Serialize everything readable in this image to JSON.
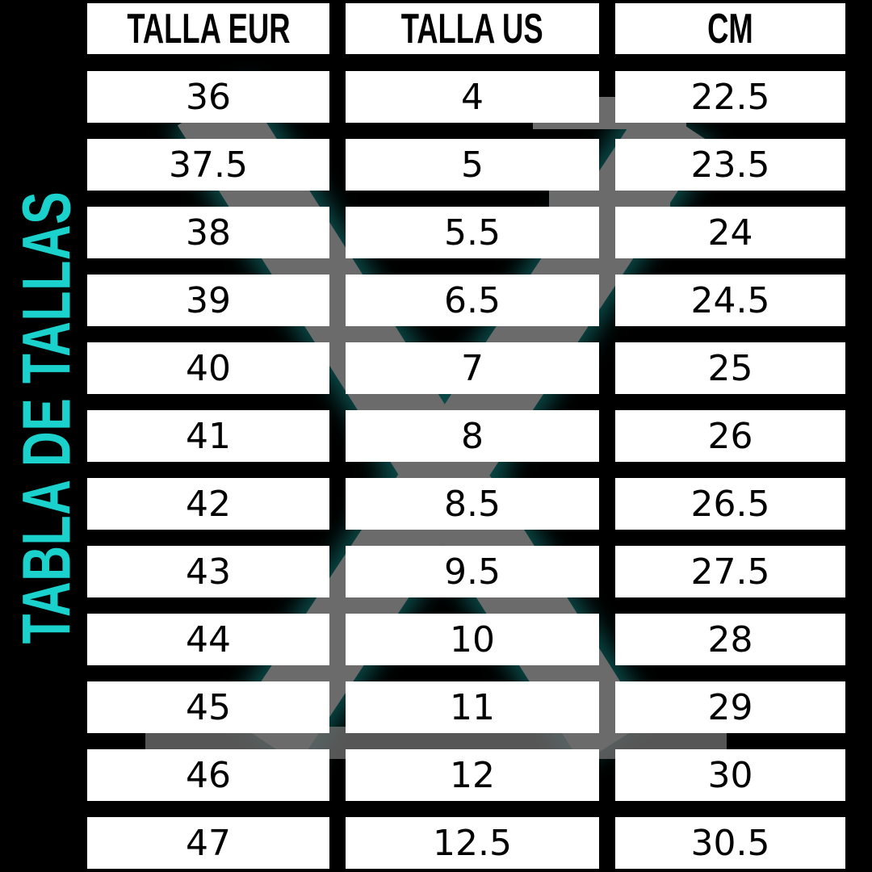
{
  "title": "TABLA DE TALLAS",
  "accent_color": "#1ad1cc",
  "columns": [
    "TALLA EUR",
    "TALLA US",
    "CM"
  ],
  "rows": [
    [
      "36",
      "4",
      "22.5"
    ],
    [
      "37.5",
      "5",
      "23.5"
    ],
    [
      "38",
      "5.5",
      "24"
    ],
    [
      "39",
      "6.5",
      "24.5"
    ],
    [
      "40",
      "7",
      "25"
    ],
    [
      "41",
      "8",
      "26"
    ],
    [
      "42",
      "8.5",
      "26.5"
    ],
    [
      "43",
      "9.5",
      "27.5"
    ],
    [
      "44",
      "10",
      "28"
    ],
    [
      "45",
      "11",
      "29"
    ],
    [
      "46",
      "12",
      "30"
    ],
    [
      "47",
      "12.5",
      "30.5"
    ]
  ]
}
